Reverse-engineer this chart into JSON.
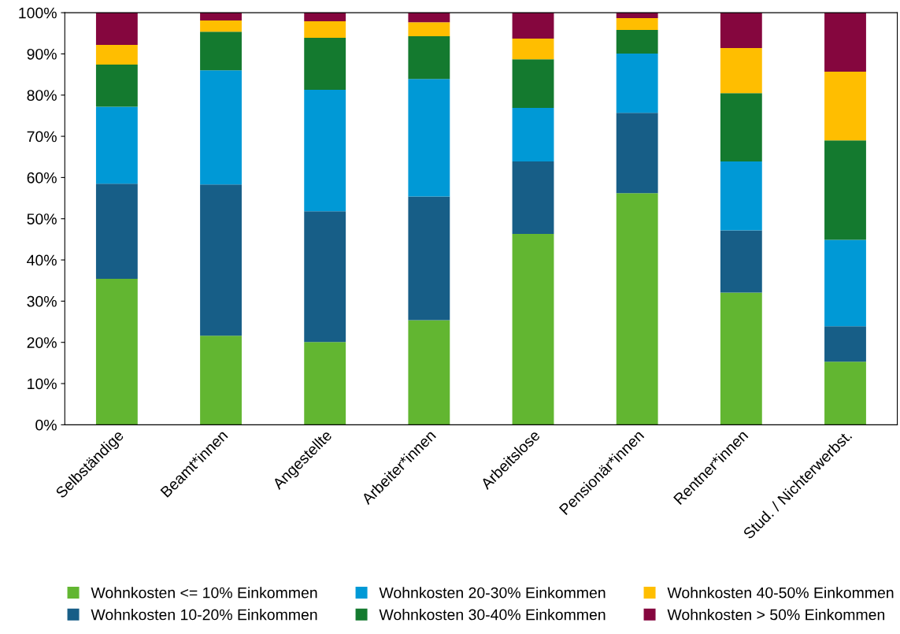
{
  "chart_data": {
    "type": "bar",
    "stacked": true,
    "categories": [
      "Selbständige",
      "Beamt*innen",
      "Angestellte",
      "Arbeiter*innen",
      "Arbeitslose",
      "Pensionär*innen",
      "Rentner*innen",
      "Stud. / Nichterwerbst."
    ],
    "series": [
      {
        "name": "Wohnkosten <= 10% Einkommen",
        "color": "#62b631",
        "values": [
          35.4,
          21.6,
          20.1,
          25.4,
          46.3,
          56.2,
          32.1,
          15.3
        ]
      },
      {
        "name": "Wohnkosten 10-20% Einkommen",
        "color": "#175e87",
        "values": [
          23.1,
          36.7,
          31.7,
          30.0,
          17.6,
          19.5,
          15.1,
          8.6
        ]
      },
      {
        "name": "Wohnkosten 20-30% Einkommen",
        "color": "#0099d6",
        "values": [
          18.7,
          27.7,
          29.5,
          28.5,
          13.0,
          14.4,
          16.7,
          21.0
        ]
      },
      {
        "name": "Wohnkosten 30-40% Einkommen",
        "color": "#147a2f",
        "values": [
          10.2,
          9.4,
          12.6,
          10.4,
          11.8,
          5.7,
          16.6,
          24.1
        ]
      },
      {
        "name": "Wohnkosten 40-50% Einkommen",
        "color": "#ffbe00",
        "values": [
          4.8,
          2.7,
          4.0,
          3.4,
          5.0,
          2.9,
          10.9,
          16.7
        ]
      },
      {
        "name": "Wohnkosten > 50% Einkommen",
        "color": "#85063e",
        "values": [
          7.8,
          1.9,
          2.1,
          2.3,
          6.3,
          1.3,
          8.6,
          14.3
        ]
      }
    ],
    "ylim": [
      0,
      100
    ],
    "yticks": [
      {
        "value": 0,
        "label": "0%"
      },
      {
        "value": 10,
        "label": "10%"
      },
      {
        "value": 20,
        "label": "20%"
      },
      {
        "value": 30,
        "label": "30%"
      },
      {
        "value": 40,
        "label": "40%"
      },
      {
        "value": 50,
        "label": "50%"
      },
      {
        "value": 60,
        "label": "60%"
      },
      {
        "value": 70,
        "label": "70%"
      },
      {
        "value": 80,
        "label": "80%"
      },
      {
        "value": 90,
        "label": "90%"
      },
      {
        "value": 100,
        "label": "100%"
      }
    ],
    "legend": "bottom"
  }
}
